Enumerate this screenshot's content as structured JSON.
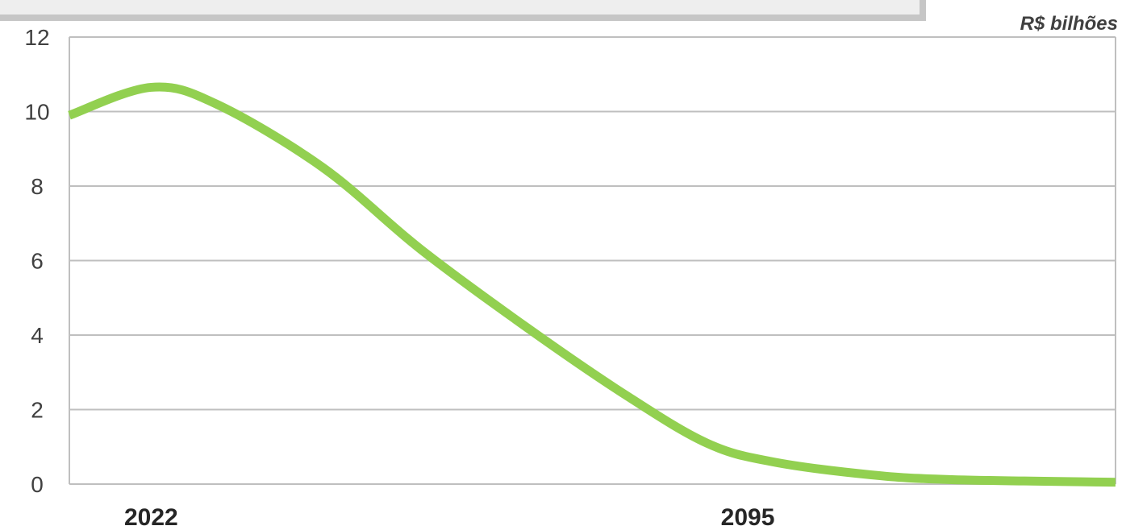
{
  "unit_label": "R$ bilhões",
  "chart_data": {
    "type": "line",
    "title": "",
    "xlabel": "",
    "ylabel": "",
    "unit": "R$ bilhões",
    "ylim": [
      0,
      12
    ],
    "y_ticks": [
      "0",
      "2",
      "4",
      "6",
      "8",
      "10",
      "12"
    ],
    "x_range": [
      2012,
      2140
    ],
    "x_tick_labels": [
      {
        "value": 2022,
        "label": "2022"
      },
      {
        "value": 2095,
        "label": "2095"
      }
    ],
    "grid": true,
    "line_color": "#92d050",
    "series": [
      {
        "x": [
          2012,
          2022,
          2030,
          2043,
          2055,
          2068,
          2080,
          2090,
          2098,
          2110,
          2120,
          2140
        ],
        "values": [
          9.9,
          10.65,
          10.2,
          8.5,
          6.3,
          4.2,
          2.4,
          1.1,
          0.6,
          0.25,
          0.12,
          0.05
        ]
      }
    ]
  }
}
